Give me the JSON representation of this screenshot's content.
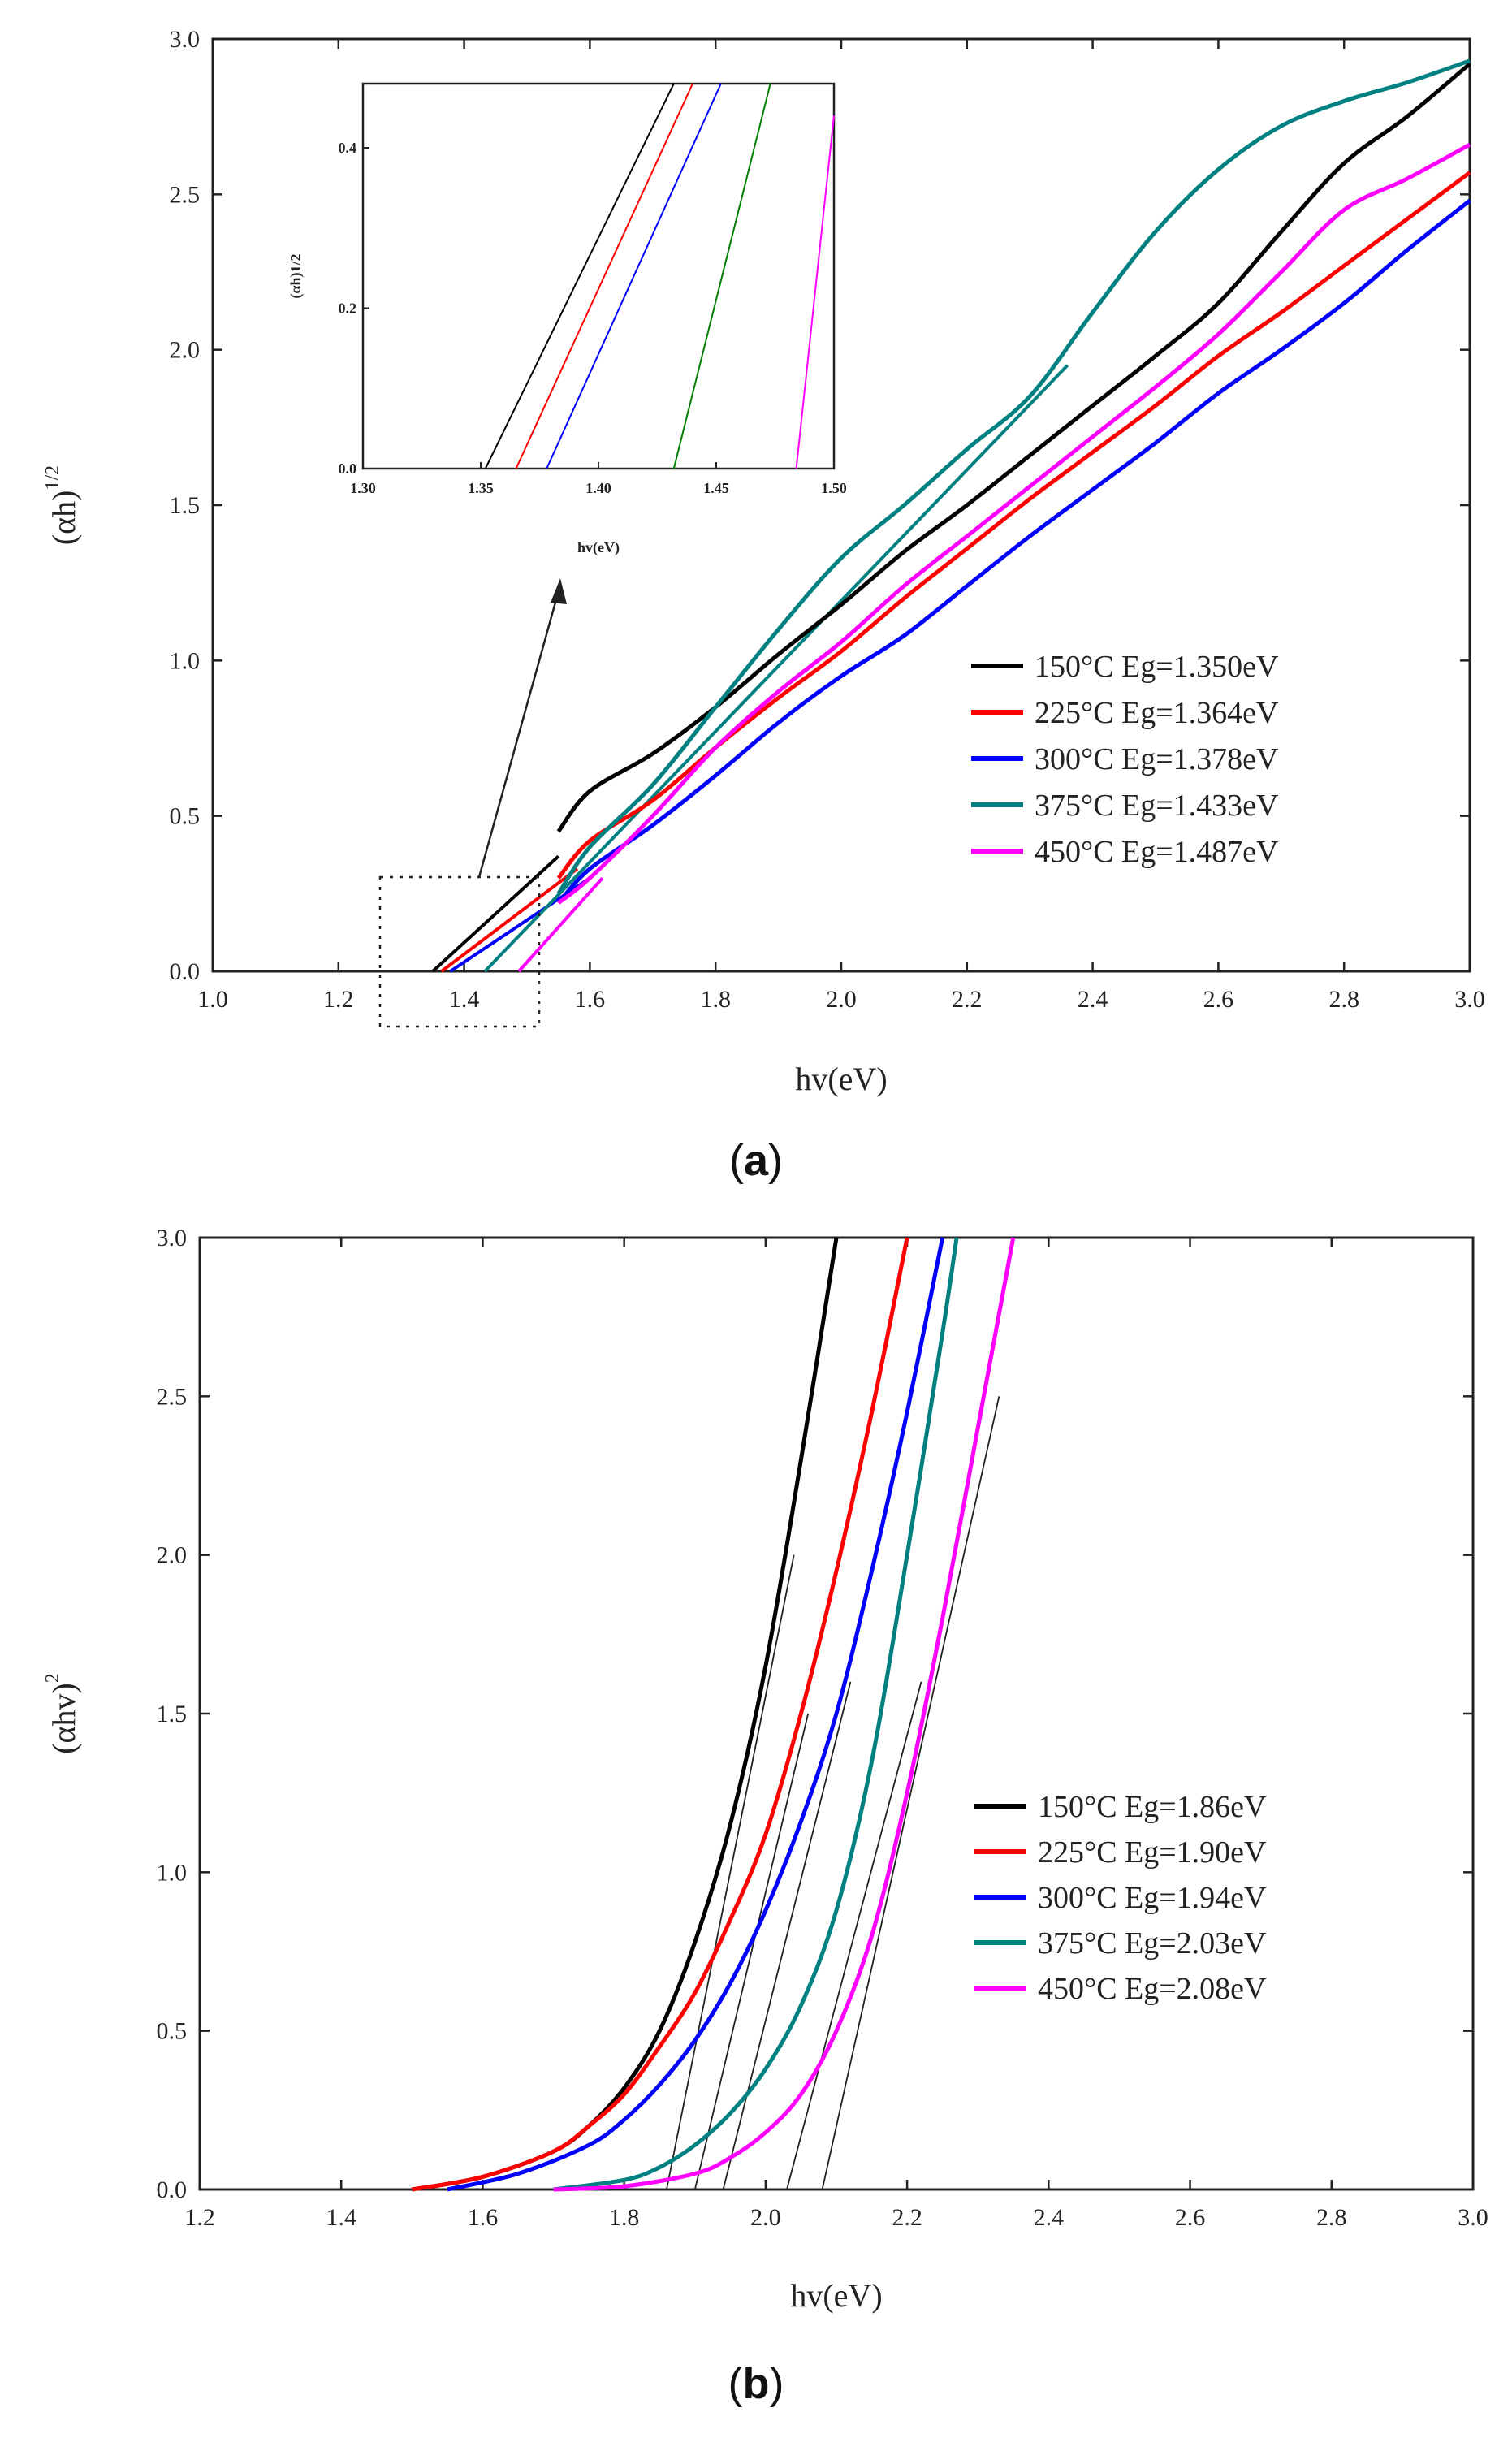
{
  "chart_data": [
    {
      "id": "a",
      "panel_label": "a",
      "type": "line",
      "xlabel": "hv(eV)",
      "ylabel_main": "(αh)",
      "ylabel_sup": "1/2",
      "xlim": [
        1.0,
        3.0
      ],
      "ylim": [
        0.0,
        3.0
      ],
      "xticks": [
        "1.0",
        "1.2",
        "1.4",
        "1.6",
        "1.8",
        "2.0",
        "2.2",
        "2.4",
        "2.6",
        "2.8",
        "3.0"
      ],
      "yticks": [
        "0.0",
        "0.5",
        "1.0",
        "1.5",
        "2.0",
        "2.5",
        "3.0"
      ],
      "legend": [
        "150°C Eg=1.350eV",
        "225°C Eg=1.364eV",
        "300°C Eg=1.378eV",
        "375°C Eg=1.433eV",
        "450°C Eg=1.487eV"
      ],
      "series": [
        {
          "name": "150°C",
          "color": "#000000",
          "x": [
            1.55,
            1.6,
            1.7,
            1.8,
            1.9,
            2.0,
            2.1,
            2.2,
            2.3,
            2.4,
            2.5,
            2.6,
            2.7,
            2.8,
            2.9,
            3.0
          ],
          "y": [
            0.45,
            0.58,
            0.7,
            0.85,
            1.02,
            1.18,
            1.35,
            1.5,
            1.66,
            1.82,
            1.98,
            2.15,
            2.38,
            2.6,
            2.75,
            2.92
          ]
        },
        {
          "name": "225°C",
          "color": "#ff0000",
          "x": [
            1.55,
            1.6,
            1.7,
            1.8,
            1.9,
            2.0,
            2.1,
            2.2,
            2.3,
            2.4,
            2.5,
            2.6,
            2.7,
            2.8,
            2.9,
            3.0
          ],
          "y": [
            0.3,
            0.42,
            0.55,
            0.72,
            0.88,
            1.03,
            1.2,
            1.36,
            1.52,
            1.67,
            1.82,
            1.98,
            2.12,
            2.27,
            2.42,
            2.57
          ]
        },
        {
          "name": "300°C",
          "color": "#0000ff",
          "x": [
            1.55,
            1.6,
            1.7,
            1.8,
            1.9,
            2.0,
            2.1,
            2.2,
            2.3,
            2.4,
            2.5,
            2.6,
            2.7,
            2.8,
            2.9,
            3.0
          ],
          "y": [
            0.22,
            0.33,
            0.47,
            0.63,
            0.8,
            0.95,
            1.08,
            1.24,
            1.4,
            1.55,
            1.7,
            1.86,
            2.0,
            2.15,
            2.32,
            2.48
          ]
        },
        {
          "name": "375°C",
          "color": "#008080",
          "x": [
            1.55,
            1.6,
            1.7,
            1.8,
            1.9,
            2.0,
            2.1,
            2.2,
            2.3,
            2.4,
            2.5,
            2.6,
            2.7,
            2.8,
            2.9,
            3.0
          ],
          "y": [
            0.25,
            0.4,
            0.6,
            0.85,
            1.1,
            1.33,
            1.5,
            1.68,
            1.85,
            2.12,
            2.38,
            2.58,
            2.72,
            2.8,
            2.86,
            2.93
          ]
        },
        {
          "name": "450°C",
          "color": "#ff00ff",
          "x": [
            1.55,
            1.6,
            1.7,
            1.8,
            1.9,
            2.0,
            2.1,
            2.2,
            2.3,
            2.4,
            2.5,
            2.6,
            2.7,
            2.8,
            2.9,
            3.0
          ],
          "y": [
            0.22,
            0.3,
            0.5,
            0.72,
            0.9,
            1.06,
            1.24,
            1.4,
            1.56,
            1.72,
            1.88,
            2.05,
            2.25,
            2.45,
            2.55,
            2.66
          ]
        }
      ],
      "fit_lines": [
        {
          "color": "#000000",
          "x": [
            1.35,
            1.55
          ],
          "y": [
            0.0,
            0.37
          ]
        },
        {
          "color": "#ff0000",
          "x": [
            1.364,
            1.58
          ],
          "y": [
            0.0,
            0.33
          ]
        },
        {
          "color": "#0000ff",
          "x": [
            1.378,
            1.6
          ],
          "y": [
            0.0,
            0.3
          ]
        },
        {
          "color": "#008080",
          "x": [
            1.433,
            2.36
          ],
          "y": [
            0.0,
            1.95
          ]
        },
        {
          "color": "#ff00ff",
          "x": [
            1.487,
            1.62
          ],
          "y": [
            0.0,
            0.3
          ]
        }
      ],
      "inset": {
        "xlabel": "hv(eV)",
        "ylabel": "(αh)1/2",
        "xlim": [
          1.3,
          1.5
        ],
        "ylim": [
          0.0,
          0.48
        ],
        "xticks": [
          "1.30",
          "1.35",
          "1.40",
          "1.45",
          "1.50"
        ],
        "yticks": [
          "0.0",
          "0.2",
          "0.4"
        ],
        "lines": [
          {
            "color": "#000000",
            "x": [
              1.352,
              1.432
            ],
            "y": [
              0.0,
              0.48
            ]
          },
          {
            "color": "#ff0000",
            "x": [
              1.365,
              1.44
            ],
            "y": [
              0.0,
              0.48
            ]
          },
          {
            "color": "#0000ff",
            "x": [
              1.378,
              1.452
            ],
            "y": [
              0.0,
              0.48
            ]
          },
          {
            "color": "#008000",
            "x": [
              1.432,
              1.473
            ],
            "y": [
              0.0,
              0.48
            ]
          },
          {
            "color": "#ff00ff",
            "x": [
              1.484,
              1.5
            ],
            "y": [
              0.0,
              0.44
            ]
          }
        ]
      }
    },
    {
      "id": "b",
      "panel_label": "b",
      "type": "line",
      "xlabel": "hv(eV)",
      "ylabel_main": "(αhv)",
      "ylabel_sup": "2",
      "xlim": [
        1.2,
        3.0
      ],
      "ylim": [
        0.0,
        3.0
      ],
      "xticks": [
        "1.2",
        "1.4",
        "1.6",
        "1.8",
        "2.0",
        "2.2",
        "2.4",
        "2.6",
        "2.8",
        "3.0"
      ],
      "yticks": [
        "0.0",
        "0.5",
        "1.0",
        "1.5",
        "2.0",
        "2.5",
        "3.0"
      ],
      "legend": [
        "150°C Eg=1.86eV",
        "225°C Eg=1.90eV",
        "300°C Eg=1.94eV",
        "375°C Eg=2.03eV",
        "450°C Eg=2.08eV"
      ],
      "series": [
        {
          "name": "150°C",
          "color": "#000000",
          "x": [
            1.5,
            1.6,
            1.7,
            1.75,
            1.8,
            1.85,
            1.9,
            1.95,
            2.0,
            2.05,
            2.1
          ],
          "y": [
            0.0,
            0.04,
            0.12,
            0.2,
            0.32,
            0.5,
            0.78,
            1.15,
            1.65,
            2.3,
            3.0
          ]
        },
        {
          "name": "225°C",
          "color": "#ff0000",
          "x": [
            1.5,
            1.6,
            1.7,
            1.75,
            1.8,
            1.85,
            1.9,
            1.95,
            2.0,
            2.05,
            2.1,
            2.15,
            2.2
          ],
          "y": [
            0.0,
            0.04,
            0.12,
            0.2,
            0.3,
            0.45,
            0.62,
            0.85,
            1.12,
            1.5,
            1.95,
            2.45,
            3.0
          ]
        },
        {
          "name": "300°C",
          "color": "#0000ff",
          "x": [
            1.55,
            1.65,
            1.75,
            1.8,
            1.85,
            1.9,
            1.95,
            2.0,
            2.05,
            2.1,
            2.15,
            2.2,
            2.25
          ],
          "y": [
            0.0,
            0.05,
            0.14,
            0.22,
            0.33,
            0.47,
            0.65,
            0.88,
            1.16,
            1.5,
            1.95,
            2.45,
            3.0
          ]
        },
        {
          "name": "375°C",
          "color": "#008080",
          "x": [
            1.7,
            1.8,
            1.85,
            1.9,
            1.95,
            2.0,
            2.05,
            2.1,
            2.15,
            2.2,
            2.25,
            2.27
          ],
          "y": [
            0.0,
            0.03,
            0.07,
            0.14,
            0.24,
            0.38,
            0.58,
            0.88,
            1.35,
            2.0,
            2.7,
            3.0
          ]
        },
        {
          "name": "450°C",
          "color": "#ff00ff",
          "x": [
            1.7,
            1.8,
            1.9,
            1.95,
            2.0,
            2.05,
            2.1,
            2.15,
            2.2,
            2.25,
            2.3,
            2.35
          ],
          "y": [
            0.0,
            0.01,
            0.05,
            0.1,
            0.18,
            0.3,
            0.5,
            0.8,
            1.25,
            1.8,
            2.4,
            3.0
          ]
        }
      ],
      "fit_lines": [
        {
          "x": [
            1.86,
            2.04
          ],
          "y": [
            0.0,
            2.0
          ]
        },
        {
          "x": [
            1.9,
            2.06
          ],
          "y": [
            0.0,
            1.5
          ]
        },
        {
          "x": [
            1.94,
            2.12
          ],
          "y": [
            0.0,
            1.6
          ]
        },
        {
          "x": [
            2.03,
            2.22
          ],
          "y": [
            0.0,
            1.6
          ]
        },
        {
          "x": [
            2.08,
            2.33
          ],
          "y": [
            0.0,
            2.5
          ]
        }
      ]
    }
  ]
}
